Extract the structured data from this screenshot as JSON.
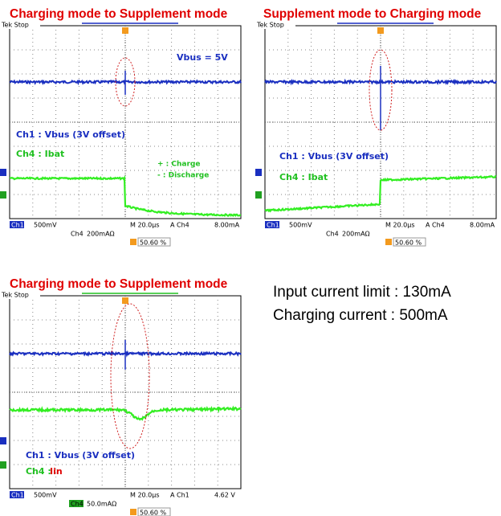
{
  "panels": [
    {
      "title": "Charging mode to Supplement mode",
      "scope_label": "Tek Stop",
      "annotations": [
        "Vbus = 5V",
        "Ch1 : Vbus (3V offset)",
        "Ch4 : Ibat",
        "+ : Charge",
        "- : Discharge"
      ],
      "ch1": "Ch1",
      "ch1_scale": "500mV",
      "ch4": "Ch4",
      "ch4_scale": "200mAΩ",
      "timebase": "M 20.0µs",
      "trigger_source": "A  Ch4",
      "trigger_level": "8.00mA",
      "trigger_position": "50.60 %"
    },
    {
      "title": "Supplement mode to Charging mode",
      "scope_label": "Tek Stop",
      "annotations": [
        "Ch1 : Vbus (3V offset)",
        "Ch4 : Ibat"
      ],
      "ch1": "Ch1",
      "ch1_scale": "500mV",
      "ch4": "Ch4",
      "ch4_scale": "200mAΩ",
      "timebase": "M 20.0µs",
      "trigger_source": "A  Ch4",
      "trigger_level": "8.00mA",
      "trigger_position": "50.60 %"
    },
    {
      "title": "Charging mode to Supplement mode",
      "scope_label": "Tek Stop",
      "annotations": [
        "Ch1 : Vbus (3V offset)",
        "Ch4 : ",
        "Iin"
      ],
      "ch1": "Ch1",
      "ch1_scale": "500mV",
      "ch4": "Ch4",
      "ch4_scale": "50.0mAΩ",
      "timebase": "M 20.0µs",
      "trigger_source": "A  Ch1",
      "trigger_level": "4.62 V",
      "trigger_position": "50.60 %"
    }
  ],
  "notes": [
    "Input current limit : 130mA",
    "Charging current : 500mA"
  ]
}
